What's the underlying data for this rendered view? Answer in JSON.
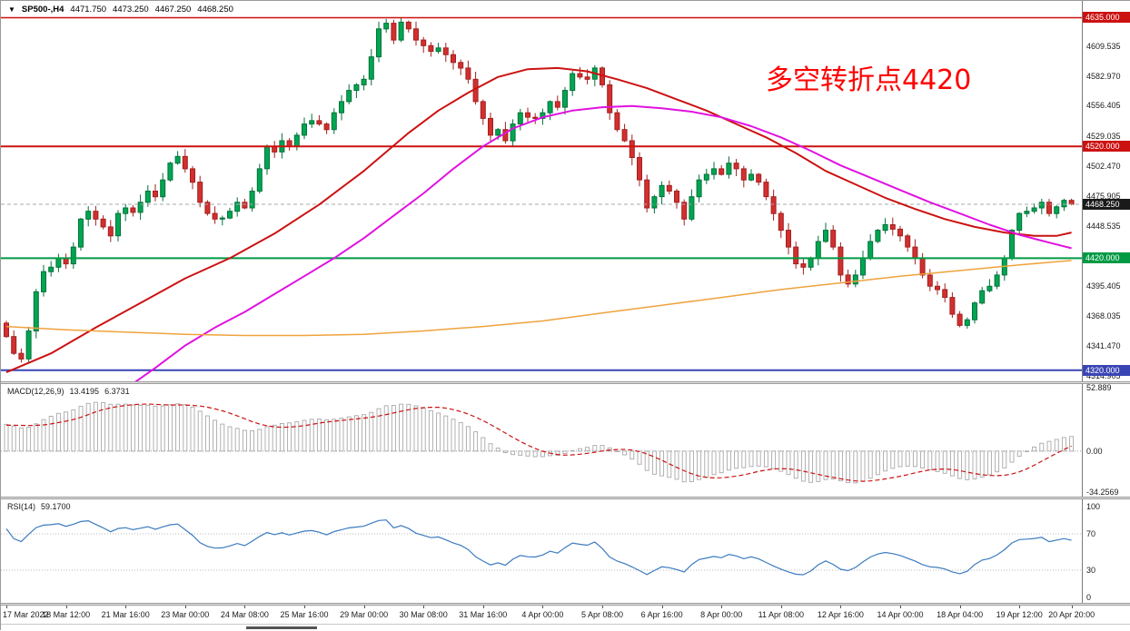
{
  "header": {
    "symbol": "SP500-,H4",
    "open": "4471.750",
    "high": "4473.250",
    "low": "4467.250",
    "close": "4468.250"
  },
  "annotation": {
    "text": "多空转折点4420",
    "color": "#ff0000"
  },
  "chart_data": {
    "type": "candlestick",
    "title": "SP500- H4",
    "timeframe": "H4",
    "colors": {
      "bull": "#00a651",
      "bull_stroke": "#00713a",
      "bear": "#d22f2f",
      "bear_stroke": "#a31f1f",
      "ma_red": "#cc1111",
      "ma_magenta": "#e012e0",
      "ma_orange": "#efa23d",
      "macd_hist": "#a8a8a8",
      "macd_signal": "#cc1111",
      "rsi_line": "#3b7bbf",
      "level_red": "#cc1111",
      "level_green": "#009a44",
      "level_blue": "#3a45b5",
      "current_price_badge": "#1a1a1a"
    },
    "y_axis": {
      "price_top": 4650,
      "price_bottom": 4310,
      "ticks": [
        4609.535,
        4582.97,
        4556.405,
        4529.035,
        4502.47,
        4475.905,
        4448.535,
        4421.97,
        4395.405,
        4368.035,
        4341.47,
        4314.905
      ],
      "badges": [
        {
          "text": "4635.000",
          "price": 4635.0,
          "bg": "#cc1111"
        },
        {
          "text": "4520.000",
          "price": 4520.0,
          "bg": "#cc1111"
        },
        {
          "text": "4468.250",
          "price": 4468.25,
          "bg": "#1a1a1a"
        },
        {
          "text": "4420.000",
          "price": 4420.0,
          "bg": "#009a44"
        },
        {
          "text": "4320.000",
          "price": 4320.0,
          "bg": "#3a45b5"
        }
      ]
    },
    "hlines": [
      {
        "price": 4635.0,
        "color": "#cc1111",
        "w": 1.5
      },
      {
        "price": 4520.0,
        "color": "#cc1111",
        "w": 2
      },
      {
        "price": 4468.25,
        "color": "#aaaaaa",
        "w": 1,
        "dash": "4,3"
      },
      {
        "price": 4420.0,
        "color": "#009a44",
        "w": 2
      },
      {
        "price": 4320.0,
        "color": "#3a45b5",
        "w": 2
      }
    ],
    "first_open": 4362,
    "closes": [
      4350,
      4335,
      4330,
      4355,
      4390,
      4408,
      4412,
      4420,
      4415,
      4430,
      4455,
      4462,
      4455,
      4448,
      4440,
      4460,
      4465,
      4461,
      4470,
      4480,
      4475,
      4490,
      4505,
      4511,
      4500,
      4488,
      4470,
      4460,
      4455,
      4456,
      4462,
      4470,
      4465,
      4480,
      4500,
      4520,
      4515,
      4525,
      4520,
      4530,
      4540,
      4543,
      4540,
      4535,
      4550,
      4560,
      4570,
      4575,
      4580,
      4600,
      4625,
      4630,
      4615,
      4631,
      4625,
      4615,
      4610,
      4605,
      4608,
      4602,
      4595,
      4590,
      4580,
      4560,
      4545,
      4530,
      4535,
      4525,
      4540,
      4550,
      4546,
      4545,
      4550,
      4560,
      4555,
      4570,
      4585,
      4582,
      4580,
      4590,
      4575,
      4550,
      4535,
      4525,
      4510,
      4490,
      4465,
      4475,
      4485,
      4480,
      4470,
      4455,
      4475,
      4490,
      4495,
      4500,
      4495,
      4505,
      4500,
      4490,
      4495,
      4488,
      4475,
      4460,
      4445,
      4430,
      4415,
      4412,
      4420,
      4435,
      4445,
      4430,
      4405,
      4397,
      4405,
      4420,
      4435,
      4445,
      4450,
      4446,
      4440,
      4430,
      4420,
      4405,
      4395,
      4392,
      4385,
      4370,
      4360,
      4365,
      4380,
      4391,
      4395,
      4405,
      4420,
      4445,
      4460,
      4462,
      4465,
      4470,
      4460,
      4466,
      4471.75,
      4468.25
    ],
    "current_bar": {
      "open": 4471.75,
      "high": 4473.25,
      "low": 4467.25,
      "close": 4468.25
    },
    "ma_lines": [
      {
        "name": "ma-red",
        "color": "#cc1111",
        "width": 2,
        "points": [
          [
            0,
            4318
          ],
          [
            6,
            4335
          ],
          [
            12,
            4358
          ],
          [
            18,
            4380
          ],
          [
            24,
            4402
          ],
          [
            30,
            4420
          ],
          [
            36,
            4442
          ],
          [
            42,
            4468
          ],
          [
            48,
            4498
          ],
          [
            54,
            4532
          ],
          [
            58,
            4552
          ],
          [
            62,
            4568
          ],
          [
            66,
            4582
          ],
          [
            70,
            4589
          ],
          [
            74,
            4590
          ],
          [
            78,
            4587
          ],
          [
            82,
            4580
          ],
          [
            86,
            4572
          ],
          [
            90,
            4562
          ],
          [
            94,
            4552
          ],
          [
            98,
            4540
          ],
          [
            102,
            4528
          ],
          [
            106,
            4514
          ],
          [
            110,
            4498
          ],
          [
            114,
            4486
          ],
          [
            118,
            4474
          ],
          [
            122,
            4464
          ],
          [
            126,
            4455
          ],
          [
            130,
            4448
          ],
          [
            134,
            4443
          ],
          [
            138,
            4440
          ],
          [
            141,
            4440
          ],
          [
            143,
            4443
          ]
        ]
      },
      {
        "name": "ma-magenta",
        "color": "#e012e0",
        "width": 2,
        "points": [
          [
            17,
            4308
          ],
          [
            20,
            4322
          ],
          [
            24,
            4342
          ],
          [
            28,
            4358
          ],
          [
            32,
            4372
          ],
          [
            36,
            4388
          ],
          [
            40,
            4404
          ],
          [
            44,
            4420
          ],
          [
            48,
            4438
          ],
          [
            52,
            4458
          ],
          [
            56,
            4478
          ],
          [
            60,
            4500
          ],
          [
            64,
            4520
          ],
          [
            68,
            4536
          ],
          [
            72,
            4546
          ],
          [
            76,
            4552
          ],
          [
            80,
            4555
          ],
          [
            84,
            4556
          ],
          [
            88,
            4554
          ],
          [
            92,
            4551
          ],
          [
            96,
            4546
          ],
          [
            100,
            4538
          ],
          [
            104,
            4528
          ],
          [
            108,
            4516
          ],
          [
            112,
            4503
          ],
          [
            116,
            4492
          ],
          [
            120,
            4481
          ],
          [
            124,
            4470
          ],
          [
            128,
            4460
          ],
          [
            132,
            4450
          ],
          [
            136,
            4441
          ],
          [
            140,
            4434
          ],
          [
            143,
            4429
          ]
        ]
      },
      {
        "name": "ma-orange",
        "color": "#efa23d",
        "width": 1.5,
        "points": [
          [
            0,
            4359
          ],
          [
            8,
            4356
          ],
          [
            16,
            4354
          ],
          [
            24,
            4352
          ],
          [
            32,
            4351
          ],
          [
            40,
            4351
          ],
          [
            48,
            4352
          ],
          [
            56,
            4355
          ],
          [
            64,
            4359
          ],
          [
            72,
            4364
          ],
          [
            80,
            4371
          ],
          [
            88,
            4378
          ],
          [
            96,
            4385
          ],
          [
            104,
            4392
          ],
          [
            112,
            4398
          ],
          [
            120,
            4404
          ],
          [
            128,
            4409
          ],
          [
            136,
            4414
          ],
          [
            143,
            4418
          ]
        ]
      }
    ],
    "x_labels": [
      {
        "bar": 0,
        "text": "17 Mar 2022"
      },
      {
        "bar": 8,
        "text": "18 Mar 12:00"
      },
      {
        "bar": 16,
        "text": "21 Mar 16:00"
      },
      {
        "bar": 24,
        "text": "23 Mar 00:00"
      },
      {
        "bar": 32,
        "text": "24 Mar 08:00"
      },
      {
        "bar": 40,
        "text": "25 Mar 16:00"
      },
      {
        "bar": 48,
        "text": "29 Mar 00:00"
      },
      {
        "bar": 56,
        "text": "30 Mar 08:00"
      },
      {
        "bar": 64,
        "text": "31 Mar 16:00"
      },
      {
        "bar": 72,
        "text": "4 Apr 00:00"
      },
      {
        "bar": 80,
        "text": "5 Apr 08:00"
      },
      {
        "bar": 88,
        "text": "6 Apr 16:00"
      },
      {
        "bar": 96,
        "text": "8 Apr 00:00"
      },
      {
        "bar": 104,
        "text": "11 Apr 08:00"
      },
      {
        "bar": 112,
        "text": "12 Apr 16:00"
      },
      {
        "bar": 120,
        "text": "14 Apr 00:00"
      },
      {
        "bar": 128,
        "text": "18 Apr 04:00"
      },
      {
        "bar": 136,
        "text": "19 Apr 12:00"
      },
      {
        "bar": 143,
        "text": "20 Apr 20:00"
      }
    ],
    "macd": {
      "label": "MACD(12,26,9)",
      "main_value": "13.4195",
      "signal_value": "6.3731",
      "range": [
        -38,
        56
      ],
      "scale": [
        {
          "text": "52.889",
          "value": 52.889
        },
        {
          "text": "0.00",
          "value": 0
        },
        {
          "text": "-34.2569",
          "value": -34.2569
        }
      ]
    },
    "rsi": {
      "label": "RSI(14)",
      "value": "59.1700",
      "range": [
        0,
        100
      ],
      "levels": [
        {
          "text": "100",
          "value": 100,
          "line": false
        },
        {
          "text": "70",
          "value": 70,
          "line": true
        },
        {
          "text": "30",
          "value": 30,
          "line": true
        },
        {
          "text": "0",
          "value": 0,
          "line": false
        }
      ]
    }
  }
}
